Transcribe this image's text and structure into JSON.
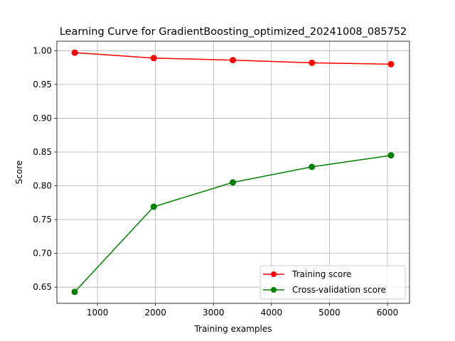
{
  "chart_data": {
    "type": "line",
    "title": "Learning Curve for GradientBoosting_optimized_20241008_085752",
    "xlabel": "Training examples",
    "ylabel": "Score",
    "xlim": [
      300,
      6380
    ],
    "ylim": [
      0.626,
      1.014
    ],
    "xticks": [
      1000,
      2000,
      3000,
      4000,
      5000,
      6000
    ],
    "xtick_labels": [
      "1000",
      "2000",
      "3000",
      "4000",
      "5000",
      "6000"
    ],
    "yticks": [
      0.65,
      0.7,
      0.75,
      0.8,
      0.85,
      0.9,
      0.95,
      1.0
    ],
    "ytick_labels": [
      "0.65",
      "0.70",
      "0.75",
      "0.80",
      "0.85",
      "0.90",
      "0.95",
      "1.00"
    ],
    "grid": true,
    "legend_position": "lower-right",
    "x": [
      607,
      1970,
      3334,
      4697,
      6061
    ],
    "series": [
      {
        "name": "Training score",
        "color": "#ff0000",
        "marker": "circle",
        "values": [
          0.997,
          0.989,
          0.986,
          0.982,
          0.98
        ]
      },
      {
        "name": "Cross-validation score",
        "color": "#008000",
        "marker": "circle",
        "values": [
          0.643,
          0.769,
          0.805,
          0.828,
          0.845
        ]
      }
    ]
  }
}
